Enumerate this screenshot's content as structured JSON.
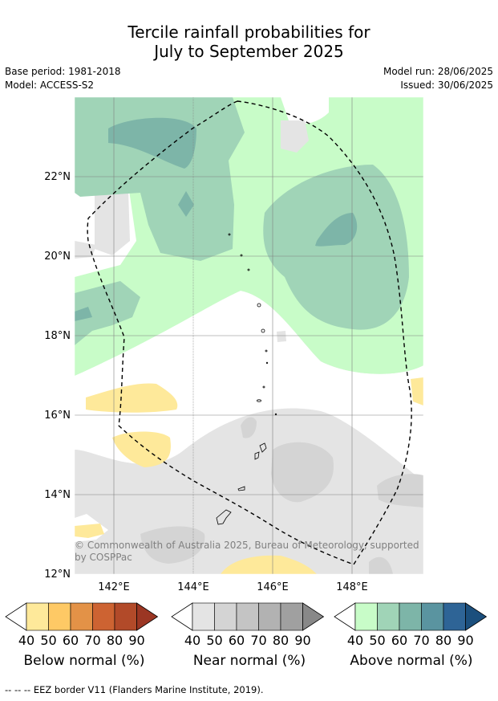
{
  "title": {
    "line1": "Tercile rainfall probabilities for",
    "line2": "July to September 2025"
  },
  "meta": {
    "base_period": "Base period: 1981-2018",
    "model": "Model: ACCESS-S2",
    "model_run": "Model run: 28/06/2025",
    "issued": "Issued: 30/06/2025"
  },
  "map": {
    "lat_ticks": [
      "22°N",
      "20°N",
      "18°N",
      "16°N",
      "14°N",
      "12°N"
    ],
    "lon_ticks": [
      "142°E",
      "144°E",
      "146°E",
      "148°E"
    ],
    "copyright": "© Commonwealth of Australia 2025, Bureau of Meteorology, supported by COSPPac"
  },
  "colorbars": [
    {
      "label": "Below normal (%)",
      "ticks": [
        "40",
        "50",
        "60",
        "70",
        "80",
        "90"
      ],
      "colors": [
        "#fee99a",
        "#fec965",
        "#e39247",
        "#cd6332",
        "#b24a29",
        "#9b3623"
      ]
    },
    {
      "label": "Near normal (%)",
      "ticks": [
        "40",
        "50",
        "60",
        "70",
        "80",
        "90"
      ],
      "colors": [
        "#e4e4e4",
        "#d4d4d4",
        "#c4c4c4",
        "#b2b2b2",
        "#a0a0a0",
        "#888888"
      ]
    },
    {
      "label": "Above normal (%)",
      "ticks": [
        "40",
        "50",
        "60",
        "70",
        "80",
        "90"
      ],
      "colors": [
        "#c8fcc8",
        "#a0d4b7",
        "#7db5a8",
        "#5a94a0",
        "#2e6496",
        "#1b4f7d"
      ]
    }
  ],
  "footnote": "-- -- -- EEZ border V11 (Flanders Marine Institute, 2019)."
}
